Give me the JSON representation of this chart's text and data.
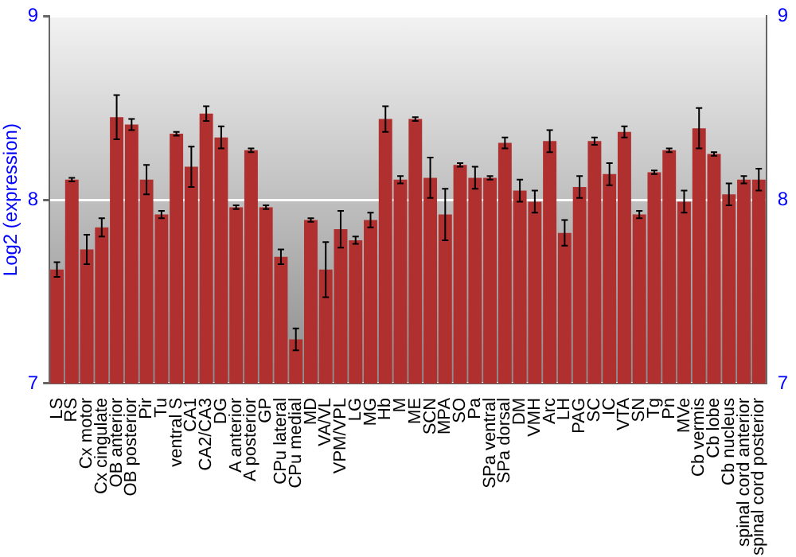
{
  "chart_data": {
    "type": "bar",
    "ylabel": "Log2 (expression)",
    "categories": [
      "LS",
      "RS",
      "Cx motor",
      "Cx cingulate",
      "OB anterior",
      "OB posterior",
      "Pir",
      "Tu",
      "ventral S",
      "CA1",
      "CA2/CA3",
      "DG",
      "A anterior",
      "A posterior",
      "GP",
      "CPu lateral",
      "CPu medial",
      "MD",
      "VA/VL",
      "VPM/VPL",
      "LG",
      "MG",
      "Hb",
      "M",
      "ME",
      "SCN",
      "MPA",
      "SO",
      "Pa",
      "SPa ventral",
      "SPa dorsal",
      "DM",
      "VMH",
      "Arc",
      "LH",
      "PAG",
      "SC",
      "IC",
      "VTA",
      "SN",
      "Tg",
      "Pn",
      "MVe",
      "Cb vermis",
      "Cb lobe",
      "Cb nucleus",
      "spinal cord anterior",
      "spinal cord posterior"
    ],
    "values": [
      7.62,
      8.11,
      7.73,
      7.85,
      8.45,
      8.41,
      8.11,
      7.92,
      8.36,
      8.18,
      8.47,
      8.34,
      7.96,
      8.27,
      7.96,
      7.69,
      7.24,
      7.89,
      7.62,
      7.84,
      7.78,
      7.89,
      8.44,
      8.11,
      8.44,
      8.12,
      7.92,
      8.19,
      8.12,
      8.12,
      8.31,
      8.05,
      7.99,
      8.32,
      7.82,
      8.07,
      8.32,
      8.14,
      8.37,
      7.92,
      8.15,
      8.27,
      7.99,
      8.39,
      8.25,
      8.03,
      8.11,
      8.11
    ],
    "errors": [
      0.04,
      0.01,
      0.08,
      0.05,
      0.12,
      0.03,
      0.08,
      0.02,
      0.01,
      0.11,
      0.04,
      0.06,
      0.01,
      0.01,
      0.01,
      0.04,
      0.06,
      0.01,
      0.15,
      0.1,
      0.02,
      0.04,
      0.07,
      0.02,
      0.01,
      0.11,
      0.14,
      0.01,
      0.06,
      0.01,
      0.03,
      0.06,
      0.06,
      0.06,
      0.07,
      0.06,
      0.02,
      0.06,
      0.03,
      0.02,
      0.01,
      0.01,
      0.06,
      0.11,
      0.01,
      0.06,
      0.02,
      0.06
    ],
    "color": "#b03030",
    "ylim": [
      7,
      9
    ],
    "yticks": [
      7,
      8,
      9
    ],
    "y2lim": [
      7,
      9
    ],
    "y2ticks": [
      7,
      8,
      9
    ],
    "grid": "y"
  }
}
